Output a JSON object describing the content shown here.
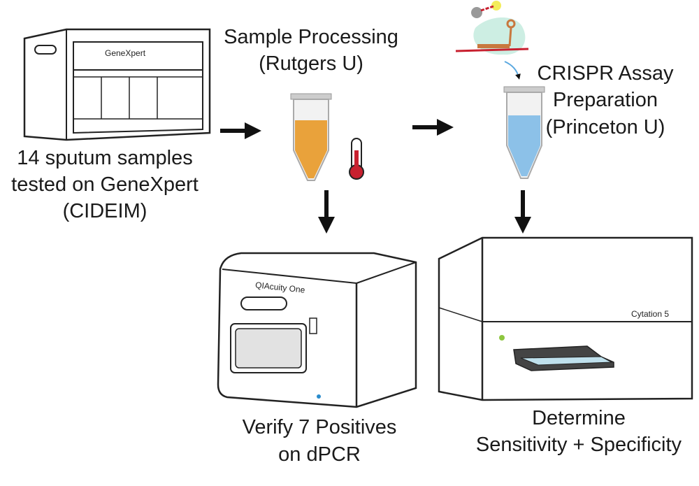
{
  "steps": {
    "genexpert": {
      "device": "GeneXpert",
      "lines": [
        "14 sputum samples",
        "tested on GeneXpert",
        "(CIDEIM)"
      ]
    },
    "processing": {
      "lines": [
        "Sample Processing",
        "(Rutgers U)"
      ]
    },
    "crispr": {
      "lines": [
        "CRISPR Assay",
        "Preparation",
        "(Princeton U)"
      ]
    },
    "dpcr": {
      "device": "QIAcuity One",
      "lines": [
        "Verify 7 Positives",
        "on dPCR"
      ]
    },
    "cytation": {
      "device": "Cytation 5",
      "lines": [
        "Determine",
        "Sensitivity + Specificity"
      ]
    }
  },
  "colors": {
    "orange_fluid": "#e9a23b",
    "blue_fluid": "#8cc1e8",
    "thermometer": "#c8202f",
    "led": "#8dc63f",
    "blob": "#cdeee3"
  }
}
